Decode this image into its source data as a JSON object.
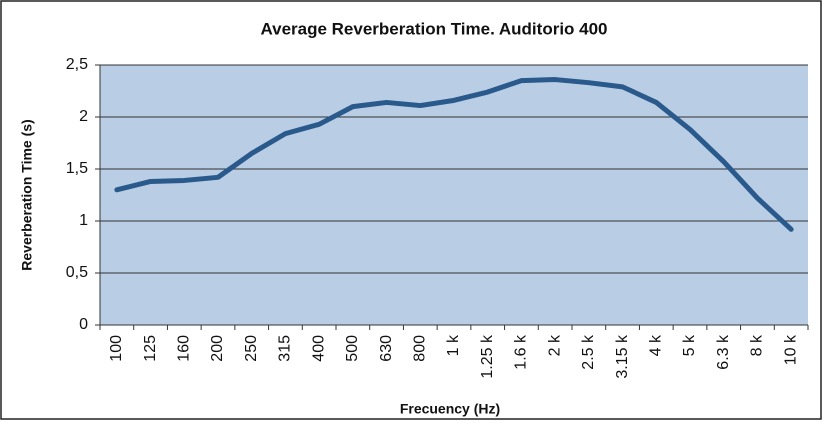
{
  "chart_data": {
    "type": "line",
    "title": "Average Reverberation Time.  Auditorio 400",
    "x_label": "Frecuency  (Hz)",
    "y_label": "Reverberation Time (s)",
    "categories": [
      "100",
      "125",
      "160",
      "200",
      "250",
      "315",
      "400",
      "500",
      "630",
      "800",
      "1 k",
      "1.25 k",
      "1.6 k",
      "2 k",
      "2.5 k",
      "3.15 k",
      "4 k",
      "5 k",
      "6.3 k",
      "8 k",
      "10 k"
    ],
    "series": [
      {
        "color": "#2a5a8c",
        "values": [
          1.3,
          1.38,
          1.39,
          1.42,
          1.65,
          1.84,
          1.93,
          2.1,
          2.14,
          2.11,
          2.16,
          2.24,
          2.35,
          2.36,
          2.33,
          2.29,
          2.14,
          1.88,
          1.57,
          1.22,
          0.92
        ]
      }
    ],
    "ylim": [
      0,
      2.5
    ],
    "yticks": [
      0,
      {
        "value": 0.5,
        "label": "0,5"
      },
      1,
      {
        "value": 1.5,
        "label": "1,5"
      },
      2,
      {
        "value": 2.5,
        "label": "2,5"
      }
    ],
    "grid": true,
    "plot_background": "#b9cde5"
  }
}
